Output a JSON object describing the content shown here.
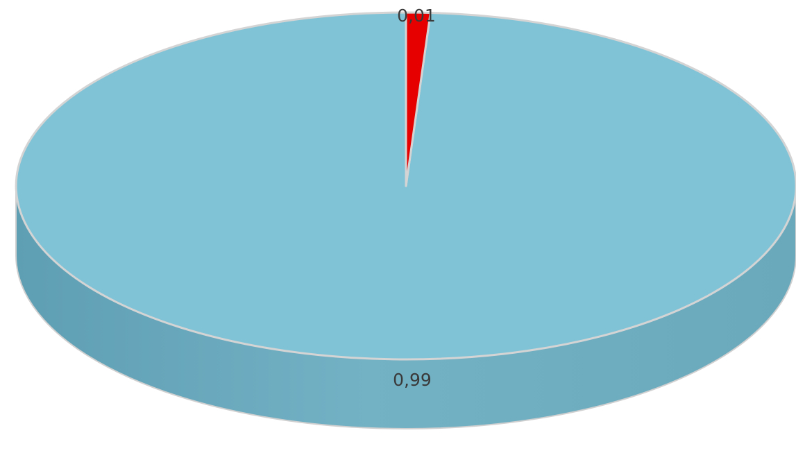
{
  "chart_data": {
    "type": "pie",
    "style": "3d",
    "title": "",
    "slices": [
      {
        "value": 0.99,
        "label": "0,99",
        "color": "#80c3d7"
      },
      {
        "value": 0.01,
        "label": "0,01",
        "color": "#e60000"
      }
    ],
    "legend": "none"
  }
}
